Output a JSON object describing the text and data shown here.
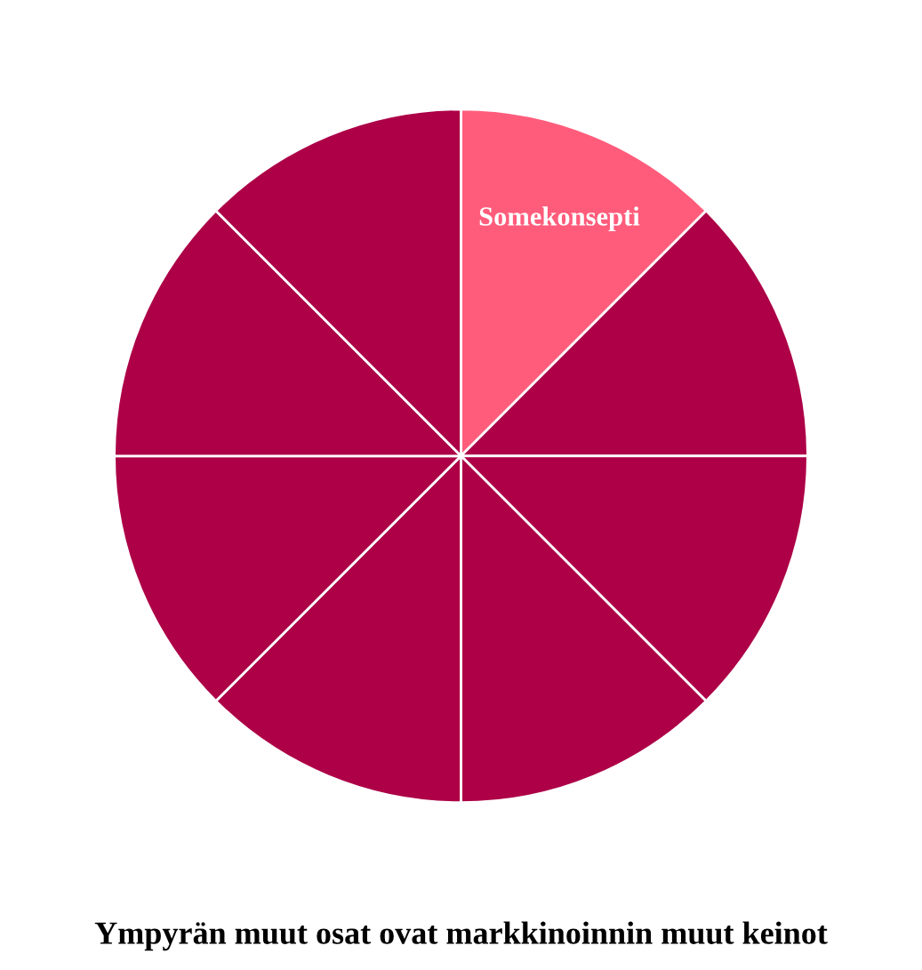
{
  "chart_data": {
    "type": "pie",
    "categories": [
      "Somekonsepti",
      null,
      null,
      null,
      null,
      null,
      null,
      null
    ],
    "values": [
      12.5,
      12.5,
      12.5,
      12.5,
      12.5,
      12.5,
      12.5,
      12.5
    ],
    "colors": [
      "#ff5c7c",
      "#ad0047",
      "#ad0047",
      "#ad0047",
      "#ad0047",
      "#ad0047",
      "#ad0047",
      "#ad0047"
    ],
    "annotations": [
      "Ympyrän muut osat ovat markkinoinnin muut keinot"
    ]
  }
}
